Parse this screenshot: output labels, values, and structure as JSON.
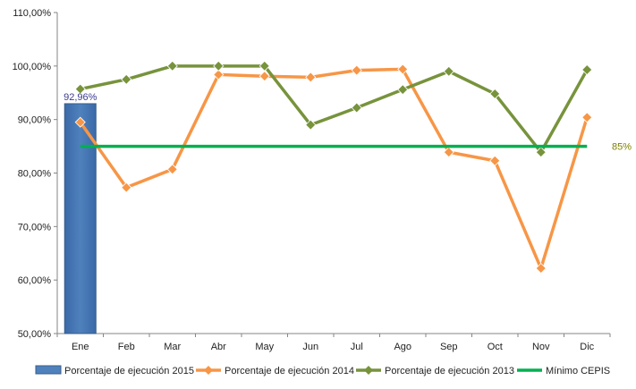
{
  "chart_data": {
    "type": "bar",
    "categories": [
      "Ene",
      "Feb",
      "Mar",
      "Abr",
      "May",
      "Jun",
      "Jul",
      "Ago",
      "Sep",
      "Oct",
      "Nov",
      "Dic"
    ],
    "ylim": [
      50,
      110
    ],
    "yticks": [
      "50,00%",
      "60,00%",
      "70,00%",
      "80,00%",
      "90,00%",
      "100,00%",
      "110,00%"
    ],
    "ytick_values": [
      50,
      60,
      70,
      80,
      90,
      100,
      110
    ],
    "grid": false,
    "legend_position": "bottom",
    "series": [
      {
        "name": "Porcentaje de ejecución 2015",
        "type": "bar",
        "color": "#4f81bd",
        "values": [
          92.96,
          null,
          null,
          null,
          null,
          null,
          null,
          null,
          null,
          null,
          null,
          null
        ],
        "labels": [
          "92,96%"
        ]
      },
      {
        "name": "Porcentaje de ejecución 2014",
        "type": "line",
        "color": "#f79646",
        "values": [
          89.5,
          77.3,
          80.7,
          98.4,
          98.1,
          97.9,
          99.2,
          99.4,
          83.9,
          82.3,
          62.2,
          90.4
        ]
      },
      {
        "name": "Porcentaje de ejecución 2013",
        "type": "line",
        "color": "#77933c",
        "values": [
          95.7,
          97.5,
          100,
          100,
          100,
          89.0,
          92.2,
          95.6,
          99.0,
          94.8,
          83.9,
          99.3
        ]
      },
      {
        "name": "Mínimo CEPIS",
        "type": "line",
        "color": "#00b050",
        "values": [
          85,
          85,
          85,
          85,
          85,
          85,
          85,
          85,
          85,
          85,
          85,
          85
        ],
        "end_label": "85%",
        "end_label_color": "#7f7f00"
      }
    ]
  }
}
